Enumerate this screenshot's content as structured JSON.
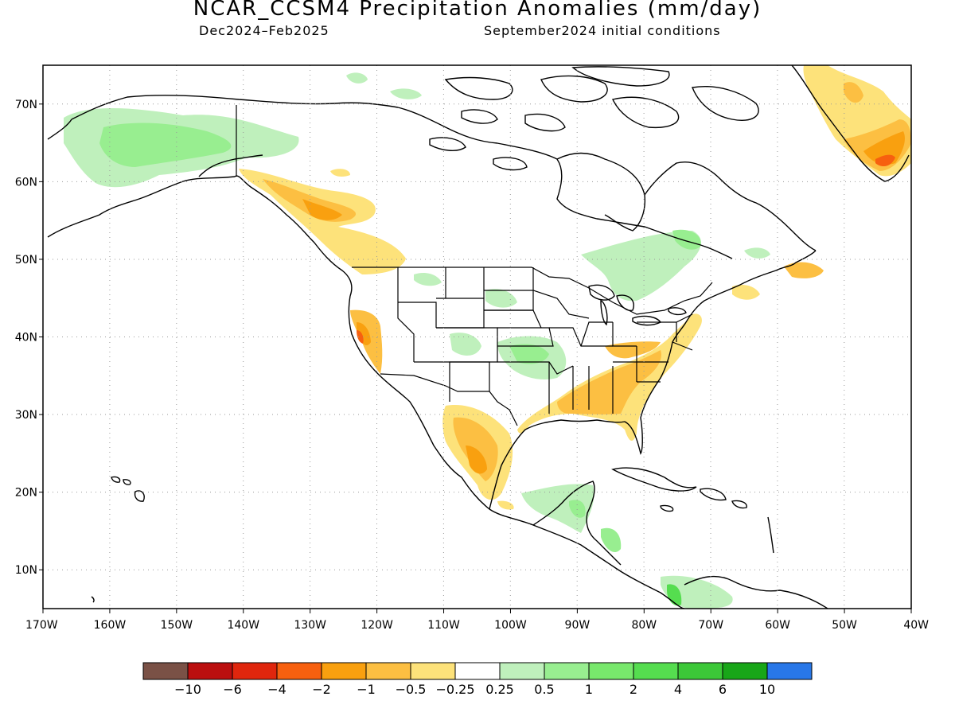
{
  "title": "NCAR_CCSM4 Precipitation Anomalies (mm/day)",
  "subtitle_left": "Dec2024–Feb2025",
  "subtitle_right": "September2024 initial conditions",
  "axes": {
    "lon_range": [
      -170,
      -40
    ],
    "lat_range": [
      5,
      75
    ],
    "lon_ticks": [
      "170W",
      "160W",
      "150W",
      "140W",
      "130W",
      "120W",
      "110W",
      "100W",
      "90W",
      "80W",
      "70W",
      "60W",
      "50W",
      "40W"
    ],
    "lon_values": [
      -170,
      -160,
      -150,
      -140,
      -130,
      -120,
      -110,
      -100,
      -90,
      -80,
      -70,
      -60,
      -50,
      -40
    ],
    "lat_ticks": [
      "10N",
      "20N",
      "30N",
      "40N",
      "50N",
      "60N",
      "70N"
    ],
    "lat_values": [
      10,
      20,
      30,
      40,
      50,
      60,
      70
    ],
    "grid": "dotted"
  },
  "legend": {
    "colors": [
      "#7a5146",
      "#bb0f0f",
      "#e0260d",
      "#f7600f",
      "#f9a00f",
      "#fcbf42",
      "#fde27a",
      "#ffffff",
      "#bff0bc",
      "#98ee90",
      "#78e86c",
      "#55dd4f",
      "#3cc838",
      "#18a618",
      "#2877e8"
    ],
    "labels": [
      "−10",
      "−6",
      "−4",
      "−2",
      "−1",
      "−0.5",
      "−0.25",
      "0.25",
      "0.5",
      "1",
      "2",
      "4",
      "6",
      "10"
    ]
  },
  "map_features": {
    "coastlines": "North America, Greenland, Central America, Caribbean",
    "borders": "US states, US–Canada, US–Mexico, Alaska–Canada"
  }
}
